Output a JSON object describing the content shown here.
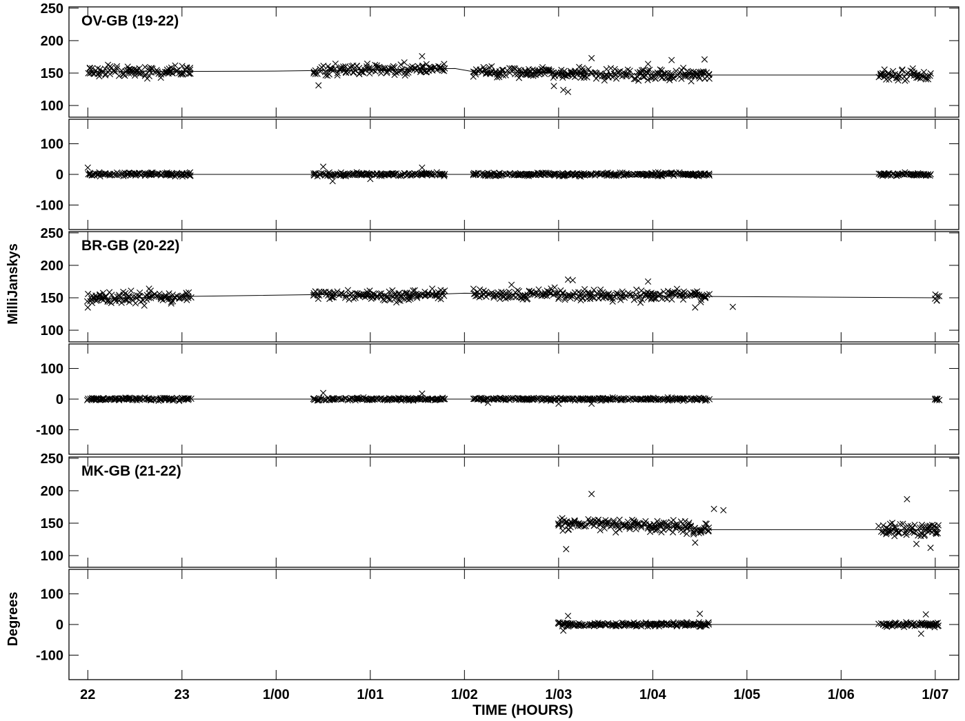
{
  "chart_data": {
    "type": "scatter",
    "x_axis": {
      "label": "TIME (HOURS)",
      "ticks": [
        "22",
        "23",
        "1/00",
        "1/01",
        "1/02",
        "1/03",
        "1/04",
        "1/05",
        "1/06",
        "1/07"
      ],
      "range_hours": [
        21.8,
        31.25
      ]
    },
    "y_axis_labels": {
      "amplitude": "MilliJanskys",
      "phase": "Degrees"
    },
    "amplitude_axis": {
      "ticks": [
        100,
        150,
        200,
        250
      ],
      "range": [
        82,
        252
      ]
    },
    "phase_axis": {
      "ticks": [
        -100,
        0,
        100
      ],
      "range": [
        -180,
        180
      ]
    },
    "baselines": [
      {
        "label": "OV-GB (19-22)",
        "segments": [
          [
            22.0,
            23.1
          ],
          [
            24.4,
            25.8
          ],
          [
            26.1,
            28.6
          ],
          [
            30.4,
            30.95
          ]
        ],
        "amplitude_model": [
          [
            22.0,
            152
          ],
          [
            24.0,
            153
          ],
          [
            25.9,
            157
          ],
          [
            26.1,
            152
          ],
          [
            27.0,
            150
          ],
          [
            28.6,
            147
          ],
          [
            31.0,
            147
          ]
        ],
        "amplitude_spread": 9,
        "amplitude_outliers": [
          [
            25.55,
            176
          ],
          [
            27.35,
            173
          ],
          [
            27.05,
            124
          ],
          [
            27.1,
            121
          ],
          [
            28.2,
            170
          ],
          [
            28.55,
            171
          ],
          [
            27.95,
            164
          ],
          [
            26.95,
            130
          ],
          [
            24.45,
            131
          ]
        ],
        "phase_model": 0,
        "phase_spread": 6,
        "phase_outliers": [
          [
            22.0,
            22
          ],
          [
            24.5,
            25
          ],
          [
            24.6,
            -22
          ],
          [
            25.55,
            22
          ],
          [
            25.0,
            -15
          ]
        ]
      },
      {
        "label": "BR-GB (20-22)",
        "segments": [
          [
            22.0,
            23.1
          ],
          [
            24.4,
            25.8
          ],
          [
            26.1,
            28.6
          ],
          [
            31.0,
            31.05
          ]
        ],
        "amplitude_model": [
          [
            22.0,
            148
          ],
          [
            23.0,
            152
          ],
          [
            24.5,
            155
          ],
          [
            25.0,
            152
          ],
          [
            26.0,
            157
          ],
          [
            27.0,
            155
          ],
          [
            28.6,
            152
          ],
          [
            31.0,
            150
          ]
        ],
        "amplitude_spread": 9,
        "amplitude_outliers": [
          [
            27.1,
            178
          ],
          [
            27.15,
            177
          ],
          [
            27.95,
            175
          ],
          [
            28.45,
            135
          ],
          [
            28.85,
            136
          ],
          [
            22.0,
            135
          ],
          [
            22.6,
            138
          ],
          [
            22.65,
            164
          ],
          [
            26.5,
            170
          ]
        ],
        "phase_model": 0,
        "phase_spread": 5,
        "phase_outliers": [
          [
            24.5,
            20
          ],
          [
            25.55,
            18
          ],
          [
            27.0,
            -15
          ],
          [
            27.35,
            -15
          ],
          [
            26.25,
            -12
          ]
        ]
      },
      {
        "label": "MK-GB (21-22)",
        "segments": [
          [
            27.0,
            28.6
          ],
          [
            30.4,
            31.05
          ]
        ],
        "amplitude_model": [
          [
            27.0,
            150
          ],
          [
            27.5,
            150
          ],
          [
            28.0,
            146
          ],
          [
            28.6,
            140
          ],
          [
            31.05,
            140
          ]
        ],
        "amplitude_spread": 11,
        "amplitude_outliers": [
          [
            27.35,
            195
          ],
          [
            27.08,
            110
          ],
          [
            30.7,
            187
          ],
          [
            28.65,
            172
          ],
          [
            28.75,
            170
          ],
          [
            28.45,
            120
          ],
          [
            30.95,
            112
          ],
          [
            30.8,
            118
          ]
        ],
        "phase_model": 0,
        "phase_spread": 7,
        "phase_outliers": [
          [
            28.5,
            35
          ],
          [
            30.9,
            33
          ],
          [
            30.85,
            -30
          ],
          [
            27.1,
            28
          ],
          [
            27.05,
            -20
          ]
        ]
      }
    ]
  }
}
